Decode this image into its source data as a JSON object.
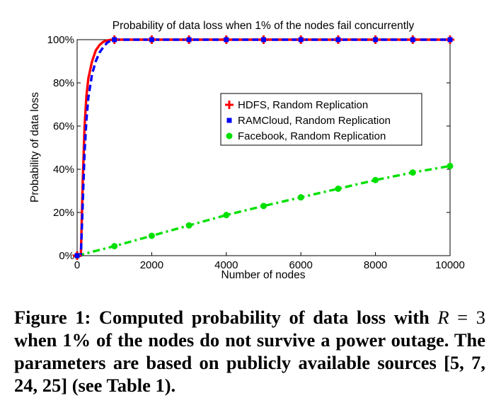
{
  "chart_data": {
    "type": "line",
    "title": "Probability of data loss when 1% of the nodes fail concurrently",
    "xlabel": "Number of nodes",
    "ylabel": "Probability of data loss",
    "xlim": [
      0,
      10000
    ],
    "ylim": [
      0,
      100
    ],
    "xticks": [
      0,
      2000,
      4000,
      6000,
      8000,
      10000
    ],
    "xtick_labels": [
      "0",
      "2000",
      "4000",
      "6000",
      "8000",
      "10000"
    ],
    "yticks": [
      0,
      20,
      40,
      60,
      80,
      100
    ],
    "ytick_labels": [
      "0%",
      "20%",
      "40%",
      "60%",
      "80%",
      "100%"
    ],
    "grid": false,
    "legend_position": "upper-right",
    "series": [
      {
        "name": "HDFS, Random Replication",
        "color": "#ff0000",
        "style": "solid",
        "marker": "plus",
        "line_x": [
          0,
          100,
          150,
          200,
          250,
          300,
          400,
          500,
          600,
          700,
          800,
          900,
          1000,
          2000,
          3000,
          4000,
          5000,
          6000,
          7000,
          8000,
          9000,
          10000
        ],
        "line_y": [
          0,
          0,
          34,
          60,
          74,
          82,
          90,
          95,
          97.5,
          99,
          99.6,
          99.9,
          100,
          100,
          100,
          100,
          100,
          100,
          100,
          100,
          100,
          100
        ],
        "markers_x": [
          0,
          1000,
          2000,
          3000,
          4000,
          5000,
          6000,
          7000,
          8000,
          9000,
          10000
        ],
        "markers_y": [
          0,
          100,
          100,
          100,
          100,
          100,
          100,
          100,
          100,
          100,
          100
        ]
      },
      {
        "name": "RAMCloud, Random Replication",
        "color": "#0000ff",
        "style": "dashed",
        "marker": "square",
        "line_x": [
          0,
          100,
          150,
          200,
          250,
          300,
          400,
          500,
          600,
          700,
          800,
          900,
          1000,
          2000,
          3000,
          4000,
          5000,
          6000,
          7000,
          8000,
          9000,
          10000
        ],
        "line_y": [
          0,
          0,
          24,
          48,
          63,
          73,
          84,
          90,
          94,
          96.5,
          98.5,
          99.6,
          100,
          100,
          100,
          100,
          100,
          100,
          100,
          100,
          100,
          100
        ],
        "markers_x": [
          0,
          1000,
          2000,
          3000,
          4000,
          5000,
          6000,
          7000,
          8000,
          9000,
          10000
        ],
        "markers_y": [
          0,
          100,
          100,
          100,
          100,
          100,
          100,
          100,
          100,
          100,
          100
        ]
      },
      {
        "name": "Facebook, Random Replication",
        "color": "#00e000",
        "style": "dashdot",
        "marker": "circle",
        "line_x": [
          0,
          1000,
          2000,
          3000,
          4000,
          5000,
          6000,
          7000,
          8000,
          9000,
          10000
        ],
        "line_y": [
          0,
          4.4,
          9.2,
          14,
          18.8,
          23,
          27,
          31,
          35,
          38.5,
          41.5
        ],
        "markers_x": [
          0,
          1000,
          2000,
          3000,
          4000,
          5000,
          6000,
          7000,
          8000,
          9000,
          10000
        ],
        "markers_y": [
          0,
          4.4,
          9.2,
          14,
          18.8,
          23,
          27,
          31,
          35,
          38.5,
          41.5
        ]
      }
    ]
  },
  "caption": {
    "lead": "Figure 1:  Computed probability of data loss with",
    "math_var": "R",
    "math_op": " = 3",
    "rest": " when 1% of the nodes do not survive a power outage. The parameters are based on publicly available sources [5, 7, 24, 25] (see Table 1)."
  }
}
